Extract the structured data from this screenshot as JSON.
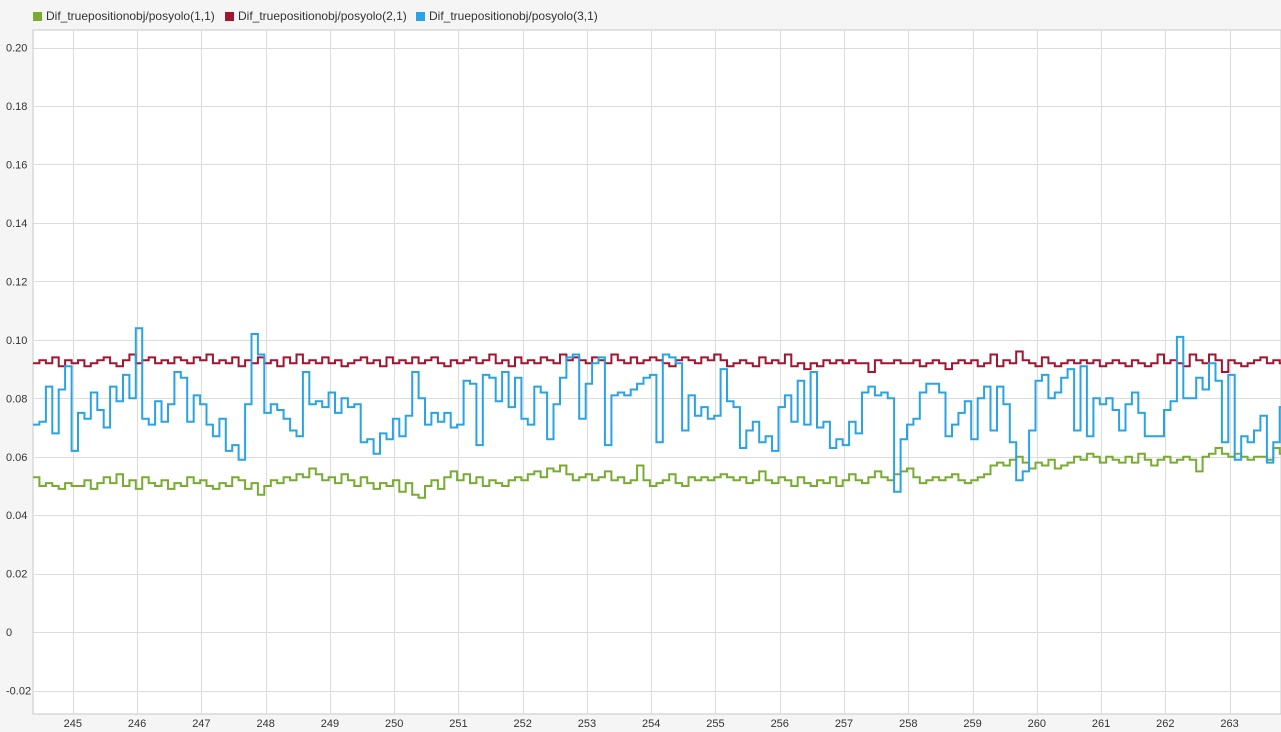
{
  "chart_data": {
    "type": "line",
    "step": true,
    "title": "",
    "xlabel": "",
    "ylabel": "",
    "xlim": [
      244.38,
      263.8
    ],
    "ylim": [
      -0.028,
      0.206
    ],
    "x_ticks": [
      245,
      246,
      247,
      248,
      249,
      250,
      251,
      252,
      253,
      254,
      255,
      256,
      257,
      258,
      259,
      260,
      261,
      262,
      263
    ],
    "y_ticks": [
      -0.02,
      0,
      0.02,
      0.04,
      0.06,
      0.08,
      0.1,
      0.12,
      0.14,
      0.16,
      0.18,
      0.2
    ],
    "y_tick_labels": [
      "-0.02",
      "0",
      "0.02",
      "0.04",
      "0.06",
      "0.08",
      "0.10",
      "0.12",
      "0.14",
      "0.16",
      "0.18",
      "0.20"
    ],
    "grid": true,
    "legend_position": "top-left",
    "x_start": 244.38,
    "x_step": 0.1,
    "series": [
      {
        "name": "Dif_truepositionobj/posyolo(1,1)",
        "color": "#77ac30",
        "values": [
          0.053,
          0.05,
          0.051,
          0.05,
          0.049,
          0.051,
          0.05,
          0.05,
          0.052,
          0.049,
          0.051,
          0.053,
          0.051,
          0.054,
          0.05,
          0.052,
          0.049,
          0.053,
          0.051,
          0.05,
          0.052,
          0.049,
          0.051,
          0.05,
          0.053,
          0.051,
          0.052,
          0.05,
          0.049,
          0.051,
          0.05,
          0.053,
          0.052,
          0.049,
          0.051,
          0.047,
          0.05,
          0.052,
          0.051,
          0.053,
          0.052,
          0.054,
          0.053,
          0.056,
          0.054,
          0.052,
          0.053,
          0.051,
          0.054,
          0.052,
          0.05,
          0.053,
          0.051,
          0.049,
          0.051,
          0.05,
          0.052,
          0.048,
          0.051,
          0.047,
          0.046,
          0.05,
          0.052,
          0.049,
          0.053,
          0.055,
          0.052,
          0.054,
          0.051,
          0.053,
          0.05,
          0.052,
          0.051,
          0.05,
          0.052,
          0.053,
          0.052,
          0.054,
          0.055,
          0.053,
          0.056,
          0.055,
          0.057,
          0.054,
          0.052,
          0.053,
          0.054,
          0.052,
          0.053,
          0.055,
          0.052,
          0.053,
          0.051,
          0.052,
          0.057,
          0.052,
          0.05,
          0.051,
          0.052,
          0.054,
          0.051,
          0.05,
          0.053,
          0.052,
          0.053,
          0.052,
          0.053,
          0.054,
          0.053,
          0.052,
          0.053,
          0.051,
          0.052,
          0.055,
          0.052,
          0.051,
          0.053,
          0.052,
          0.05,
          0.053,
          0.051,
          0.05,
          0.052,
          0.051,
          0.053,
          0.05,
          0.052,
          0.054,
          0.052,
          0.051,
          0.053,
          0.055,
          0.053,
          0.052,
          0.054,
          0.055,
          0.056,
          0.053,
          0.051,
          0.052,
          0.053,
          0.052,
          0.053,
          0.054,
          0.052,
          0.051,
          0.052,
          0.053,
          0.054,
          0.057,
          0.058,
          0.057,
          0.059,
          0.06,
          0.058,
          0.056,
          0.058,
          0.057,
          0.059,
          0.056,
          0.057,
          0.058,
          0.06,
          0.059,
          0.061,
          0.06,
          0.058,
          0.06,
          0.059,
          0.058,
          0.06,
          0.058,
          0.061,
          0.059,
          0.057,
          0.059,
          0.06,
          0.058,
          0.059,
          0.06,
          0.059,
          0.055,
          0.06,
          0.061,
          0.063,
          0.061,
          0.06,
          0.061,
          0.06,
          0.059,
          0.06,
          0.06,
          0.059,
          0.063,
          0.061,
          0.059
        ]
      },
      {
        "name": "Dif_truepositionobj/posyolo(2,1)",
        "color": "#a2142f",
        "values": [
          0.092,
          0.093,
          0.092,
          0.094,
          0.091,
          0.093,
          0.092,
          0.093,
          0.091,
          0.092,
          0.093,
          0.094,
          0.092,
          0.091,
          0.093,
          0.095,
          0.092,
          0.093,
          0.094,
          0.092,
          0.093,
          0.092,
          0.094,
          0.093,
          0.092,
          0.094,
          0.093,
          0.095,
          0.092,
          0.093,
          0.092,
          0.094,
          0.091,
          0.093,
          0.092,
          0.094,
          0.092,
          0.093,
          0.091,
          0.094,
          0.092,
          0.095,
          0.092,
          0.093,
          0.092,
          0.094,
          0.092,
          0.093,
          0.091,
          0.092,
          0.093,
          0.094,
          0.092,
          0.093,
          0.091,
          0.094,
          0.092,
          0.093,
          0.092,
          0.094,
          0.092,
          0.093,
          0.094,
          0.092,
          0.091,
          0.093,
          0.092,
          0.093,
          0.094,
          0.092,
          0.093,
          0.095,
          0.092,
          0.093,
          0.091,
          0.094,
          0.092,
          0.093,
          0.092,
          0.094,
          0.093,
          0.092,
          0.095,
          0.093,
          0.094,
          0.093,
          0.092,
          0.094,
          0.093,
          0.092,
          0.095,
          0.093,
          0.092,
          0.094,
          0.092,
          0.093,
          0.094,
          0.093,
          0.092,
          0.091,
          0.093,
          0.094,
          0.093,
          0.092,
          0.094,
          0.093,
          0.095,
          0.093,
          0.091,
          0.092,
          0.093,
          0.092,
          0.091,
          0.094,
          0.092,
          0.093,
          0.092,
          0.095,
          0.091,
          0.092,
          0.09,
          0.092,
          0.091,
          0.093,
          0.092,
          0.093,
          0.092,
          0.093,
          0.092,
          0.092,
          0.089,
          0.093,
          0.092,
          0.092,
          0.093,
          0.092,
          0.092,
          0.093,
          0.091,
          0.092,
          0.093,
          0.092,
          0.09,
          0.092,
          0.093,
          0.092,
          0.093,
          0.091,
          0.092,
          0.095,
          0.091,
          0.093,
          0.092,
          0.096,
          0.093,
          0.092,
          0.091,
          0.094,
          0.092,
          0.091,
          0.092,
          0.093,
          0.092,
          0.093,
          0.092,
          0.093,
          0.091,
          0.092,
          0.093,
          0.092,
          0.091,
          0.093,
          0.092,
          0.091,
          0.092,
          0.095,
          0.092,
          0.093,
          0.092,
          0.091,
          0.095,
          0.093,
          0.092,
          0.095,
          0.093,
          0.089,
          0.093,
          0.092,
          0.091,
          0.092,
          0.093,
          0.094,
          0.092,
          0.093,
          0.092
        ]
      },
      {
        "name": "Dif_truepositionobj/posyolo(3,1)",
        "color": "#28a3e6",
        "values": [
          0.071,
          0.072,
          0.084,
          0.068,
          0.083,
          0.091,
          0.062,
          0.075,
          0.073,
          0.082,
          0.076,
          0.07,
          0.084,
          0.079,
          0.088,
          0.08,
          0.104,
          0.073,
          0.071,
          0.079,
          0.072,
          0.078,
          0.089,
          0.087,
          0.072,
          0.081,
          0.078,
          0.071,
          0.067,
          0.073,
          0.062,
          0.064,
          0.059,
          0.078,
          0.102,
          0.095,
          0.075,
          0.078,
          0.076,
          0.073,
          0.069,
          0.067,
          0.089,
          0.078,
          0.079,
          0.077,
          0.082,
          0.075,
          0.08,
          0.077,
          0.078,
          0.065,
          0.066,
          0.061,
          0.068,
          0.066,
          0.073,
          0.067,
          0.074,
          0.089,
          0.08,
          0.071,
          0.075,
          0.072,
          0.075,
          0.07,
          0.071,
          0.086,
          0.085,
          0.064,
          0.088,
          0.087,
          0.079,
          0.089,
          0.077,
          0.087,
          0.073,
          0.071,
          0.084,
          0.082,
          0.066,
          0.078,
          0.087,
          0.094,
          0.095,
          0.073,
          0.085,
          0.092,
          0.094,
          0.064,
          0.081,
          0.082,
          0.081,
          0.083,
          0.085,
          0.087,
          0.088,
          0.065,
          0.095,
          0.094,
          0.092,
          0.069,
          0.081,
          0.074,
          0.077,
          0.073,
          0.074,
          0.09,
          0.079,
          0.077,
          0.063,
          0.069,
          0.072,
          0.065,
          0.067,
          0.062,
          0.077,
          0.081,
          0.072,
          0.086,
          0.071,
          0.089,
          0.07,
          0.072,
          0.063,
          0.066,
          0.064,
          0.072,
          0.068,
          0.082,
          0.084,
          0.081,
          0.082,
          0.08,
          0.048,
          0.066,
          0.071,
          0.073,
          0.082,
          0.085,
          0.085,
          0.082,
          0.067,
          0.071,
          0.075,
          0.079,
          0.066,
          0.08,
          0.084,
          0.069,
          0.084,
          0.078,
          0.065,
          0.052,
          0.055,
          0.069,
          0.086,
          0.088,
          0.08,
          0.082,
          0.087,
          0.09,
          0.069,
          0.091,
          0.067,
          0.08,
          0.078,
          0.08,
          0.076,
          0.069,
          0.078,
          0.082,
          0.075,
          0.067,
          0.067,
          0.067,
          0.076,
          0.079,
          0.101,
          0.08,
          0.08,
          0.087,
          0.083,
          0.092,
          0.086,
          0.065,
          0.088,
          0.059,
          0.067,
          0.065,
          0.069,
          0.074,
          0.058,
          0.065,
          0.077,
          0.08,
          0.085,
          0.074,
          0.077,
          0.085,
          0.073,
          0.079
        ]
      }
    ]
  }
}
